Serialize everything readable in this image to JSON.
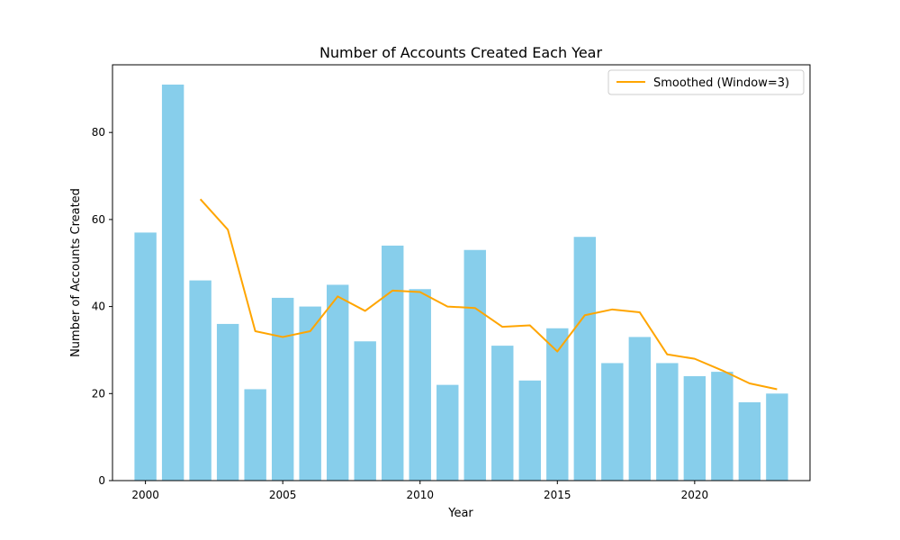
{
  "chart_data": {
    "type": "bar",
    "title": "Number of Accounts Created Each Year",
    "xlabel": "Year",
    "ylabel": "Number of Accounts Created",
    "x": [
      2000,
      2001,
      2002,
      2003,
      2004,
      2005,
      2006,
      2007,
      2008,
      2009,
      2010,
      2011,
      2012,
      2013,
      2014,
      2015,
      2016,
      2017,
      2018,
      2019,
      2020,
      2021,
      2022,
      2023
    ],
    "values": [
      57,
      91,
      46,
      36,
      21,
      42,
      40,
      45,
      32,
      54,
      44,
      22,
      53,
      31,
      23,
      35,
      56,
      27,
      33,
      27,
      24,
      25,
      18,
      20
    ],
    "line_series": {
      "name": "Smoothed (Window=3)",
      "x": [
        2002,
        2003,
        2004,
        2005,
        2006,
        2007,
        2008,
        2009,
        2010,
        2011,
        2012,
        2013,
        2014,
        2015,
        2016,
        2017,
        2018,
        2019,
        2020,
        2021,
        2022,
        2023
      ],
      "values": [
        64.67,
        57.67,
        34.33,
        33.0,
        34.33,
        42.33,
        39.0,
        43.67,
        43.33,
        40.0,
        39.67,
        35.33,
        35.67,
        29.67,
        38.0,
        39.33,
        38.67,
        29.0,
        28.0,
        25.33,
        22.33,
        21.0
      ]
    },
    "xticks": [
      2000,
      2005,
      2010,
      2015,
      2020
    ],
    "yticks": [
      0,
      20,
      40,
      60,
      80
    ],
    "xlim": [
      1998.8,
      2024.2
    ],
    "ylim": [
      0,
      95.55
    ],
    "grid": false,
    "legend_position": "upper right",
    "colors": {
      "bar": "#87ceeb",
      "line": "#ffa500",
      "axes": "#000000",
      "background": "#ffffff"
    }
  }
}
